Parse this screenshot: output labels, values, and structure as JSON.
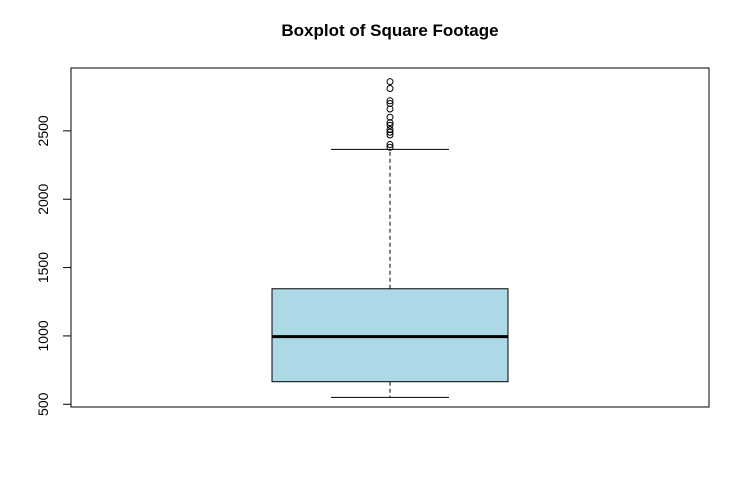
{
  "chart_data": {
    "type": "boxplot",
    "title": "Boxplot of Square Footage",
    "xlabel": "",
    "ylabel": "",
    "ylim": [
      480,
      2960
    ],
    "yticks": [
      500,
      1000,
      1500,
      2000,
      2500
    ],
    "ytick_labels": [
      "500",
      "1000",
      "1500",
      "2000",
      "2500"
    ],
    "grid": false,
    "box_color": "#add8e6",
    "box": {
      "lower_whisker": 550,
      "q1": 665,
      "median": 995,
      "q3": 1345,
      "upper_whisker": 2365
    },
    "outliers": [
      2380,
      2400,
      2470,
      2490,
      2510,
      2540,
      2560,
      2600,
      2660,
      2700,
      2720,
      2810,
      2860
    ]
  }
}
